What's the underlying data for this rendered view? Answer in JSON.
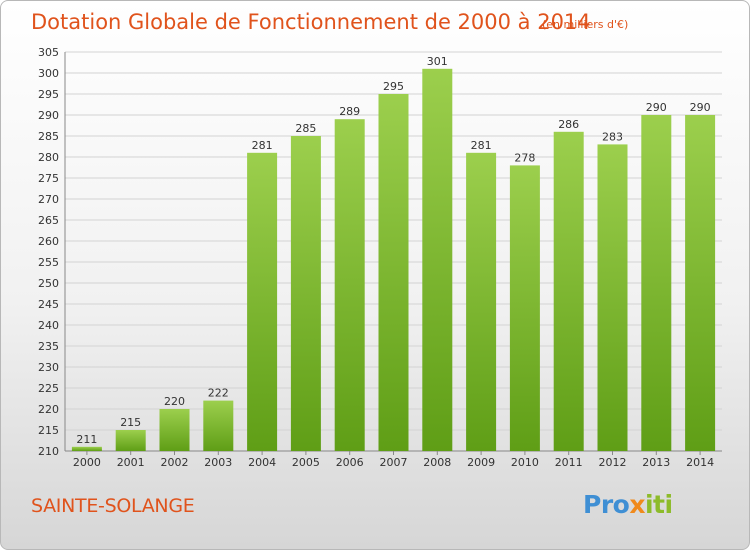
{
  "header": {
    "title": "Dotation Globale de Fonctionnement de 2000 à 2014",
    "unit": "(en milliers d'€)"
  },
  "footer": {
    "commune": "SAINTE-SOLANGE",
    "logo_text": "Proxiti"
  },
  "colors": {
    "title": "#e0531c",
    "bar_light": "#9ccf4d",
    "bar_dark": "#5f9e16",
    "grid": "#d3d3d3",
    "text": "#333333"
  },
  "chart_data": {
    "type": "bar",
    "title": "Dotation Globale de Fonctionnement de 2000 à 2014",
    "xlabel": "",
    "ylabel": "",
    "categories": [
      "2000",
      "2001",
      "2002",
      "2003",
      "2004",
      "2005",
      "2006",
      "2007",
      "2008",
      "2009",
      "2010",
      "2011",
      "2012",
      "2013",
      "2014"
    ],
    "values": [
      211,
      215,
      220,
      222,
      281,
      285,
      289,
      295,
      301,
      281,
      278,
      286,
      283,
      290,
      290
    ],
    "ylim": [
      210,
      305
    ],
    "ytick_step": 5,
    "grid": true
  }
}
